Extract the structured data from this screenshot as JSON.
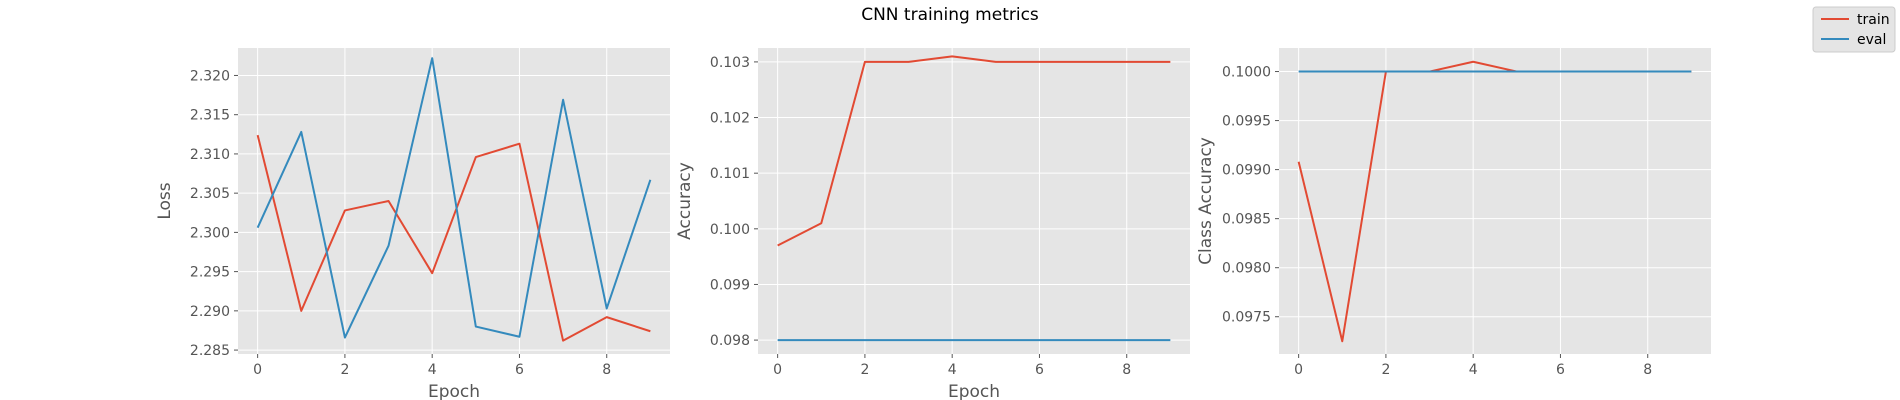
{
  "figure": {
    "title": "CNN training metrics"
  },
  "legend": {
    "items": [
      {
        "name": "train",
        "color": "#E24A33"
      },
      {
        "name": "eval",
        "color": "#348ABD"
      }
    ]
  },
  "chart_data": [
    {
      "type": "line",
      "title": "",
      "xlabel": "Epoch",
      "ylabel": "Loss",
      "x": [
        0,
        1,
        2,
        3,
        4,
        5,
        6,
        7,
        8,
        9
      ],
      "xlim": [
        -0.45,
        9.45
      ],
      "ylim": [
        2.2845,
        2.3235
      ],
      "xticks": [
        0,
        2,
        4,
        6,
        8
      ],
      "yticks": [
        2.285,
        2.29,
        2.295,
        2.3,
        2.305,
        2.31,
        2.315,
        2.32
      ],
      "ytick_decimals": 3,
      "grid": true,
      "series": [
        {
          "name": "train",
          "color": "#E24A33",
          "values": [
            2.3124,
            2.29,
            2.3028,
            2.304,
            2.2948,
            2.3096,
            2.3113,
            2.2862,
            2.2892,
            2.2874
          ]
        },
        {
          "name": "eval",
          "color": "#348ABD",
          "values": [
            2.3006,
            2.3128,
            2.2866,
            2.2983,
            2.3222,
            2.288,
            2.2867,
            2.3169,
            2.2903,
            2.3067
          ]
        }
      ]
    },
    {
      "type": "line",
      "title": "",
      "xlabel": "Epoch",
      "ylabel": "Accuracy",
      "x": [
        0,
        1,
        2,
        3,
        4,
        5,
        6,
        7,
        8,
        9
      ],
      "xlim": [
        -0.45,
        9.45
      ],
      "ylim": [
        0.09775,
        0.10325
      ],
      "xticks": [
        0,
        2,
        4,
        6,
        8
      ],
      "yticks": [
        0.098,
        0.099,
        0.1,
        0.101,
        0.102,
        0.103
      ],
      "ytick_decimals": 3,
      "grid": true,
      "series": [
        {
          "name": "train",
          "color": "#E24A33",
          "values": [
            0.0997,
            0.1001,
            0.103,
            0.103,
            0.1031,
            0.103,
            0.103,
            0.103,
            0.103,
            0.103
          ]
        },
        {
          "name": "eval",
          "color": "#348ABD",
          "values": [
            0.098,
            0.098,
            0.098,
            0.098,
            0.098,
            0.098,
            0.098,
            0.098,
            0.098,
            0.098
          ]
        }
      ]
    },
    {
      "type": "line",
      "title": "",
      "xlabel": "",
      "ylabel": "Class Accuracy",
      "x": [
        0,
        1,
        2,
        3,
        4,
        5,
        6,
        7,
        8,
        9
      ],
      "xlim": [
        -0.45,
        9.45
      ],
      "ylim": [
        0.09712,
        0.10024
      ],
      "xticks": [
        0,
        2,
        4,
        6,
        8
      ],
      "yticks": [
        0.0975,
        0.098,
        0.0985,
        0.099,
        0.0995,
        0.1
      ],
      "ytick_decimals": 4,
      "grid": true,
      "series": [
        {
          "name": "train",
          "color": "#E24A33",
          "values": [
            0.09908,
            0.09725,
            0.1,
            0.1,
            0.1001,
            0.1,
            0.1,
            0.1,
            0.1,
            0.1
          ]
        },
        {
          "name": "eval",
          "color": "#348ABD",
          "values": [
            0.1,
            0.1,
            0.1,
            0.1,
            0.1,
            0.1,
            0.1,
            0.1,
            0.1,
            0.1
          ]
        }
      ]
    }
  ]
}
